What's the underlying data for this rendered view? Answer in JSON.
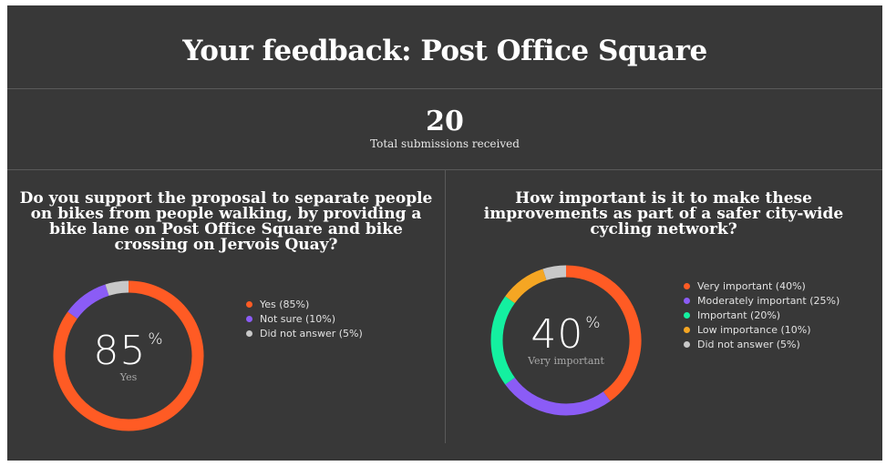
{
  "header": {
    "title": "Your feedback: Post Office Square"
  },
  "summary": {
    "total": "20",
    "caption": "Total submissions received"
  },
  "chart_data": [
    {
      "type": "pie",
      "title": "Do you support the proposal to separate people on bikes from people walking, by providing a bike lane on Post Office Square and bike crossing on Jervois Quay?",
      "center_value": "85",
      "center_unit": "%",
      "center_label": "Yes",
      "categories": [
        "Yes",
        "Not sure",
        "Did not answer"
      ],
      "values": [
        85,
        10,
        5
      ],
      "legend_labels": [
        "Yes (85%)",
        "Not sure (10%)",
        "Did not answer (5%)"
      ],
      "colors": [
        "#ff5b24",
        "#8b5cf6",
        "#c8c8c8"
      ],
      "legend_position": "right"
    },
    {
      "type": "pie",
      "title": "How important is it to make these improvements as part of a safer city-wide cycling network?",
      "center_value": "40",
      "center_unit": "%",
      "center_label": "Very important",
      "categories": [
        "Very important",
        "Moderately important",
        "Important",
        "Low importance",
        "Did not answer"
      ],
      "values": [
        40,
        25,
        20,
        10,
        5
      ],
      "legend_labels": [
        "Very important (40%)",
        "Moderately important (25%)",
        "Important (20%)",
        "Low importance (10%)",
        "Did not answer (5%)"
      ],
      "colors": [
        "#ff5b24",
        "#8b5cf6",
        "#14f0a0",
        "#f5a623",
        "#c8c8c8"
      ],
      "legend_position": "right"
    }
  ]
}
